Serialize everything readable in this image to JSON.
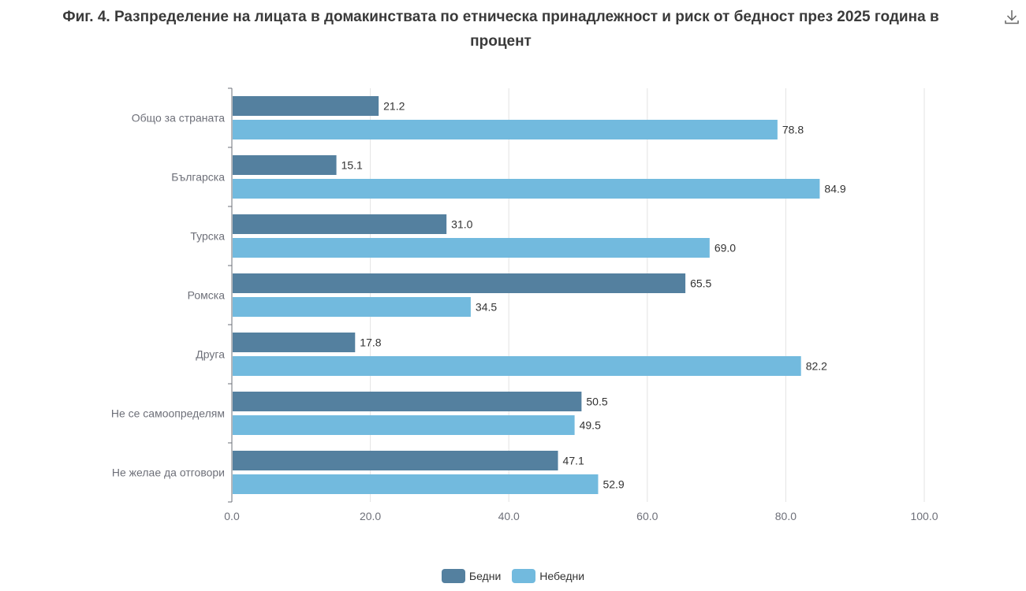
{
  "title": "Фиг. 4. Разпределение на лицата в домакинствата по етническа принадлежност и риск от бедност през 2025 година в процент",
  "colors": {
    "poor": "#54809f",
    "not_poor": "#72bade",
    "grid": "#e3e3e3",
    "axis": "#6e7079",
    "label": "#333333",
    "tick": "#6e7079"
  },
  "chart_data": {
    "type": "bar",
    "orientation": "horizontal",
    "categories": [
      "Общо за страната",
      "Българска",
      "Турска",
      "Ромска",
      "Друга",
      "Не се самоопределям",
      "Не желае да отговори"
    ],
    "series": [
      {
        "name": "Бедни",
        "values": [
          21.2,
          15.1,
          31.0,
          65.5,
          17.8,
          50.5,
          47.1
        ],
        "labels": [
          "21.2",
          "15.1",
          "31.0",
          "65.5",
          "17.8",
          "50.5",
          "47.1"
        ]
      },
      {
        "name": "Небедни",
        "values": [
          78.8,
          84.9,
          69.0,
          34.5,
          82.2,
          49.5,
          52.9
        ],
        "labels": [
          "78.8",
          "84.9",
          "69.0",
          "34.5",
          "82.2",
          "49.5",
          "52.9"
        ]
      }
    ],
    "xlim": [
      0,
      100
    ],
    "xticks": [
      "0.0",
      "20.0",
      "40.0",
      "60.0",
      "80.0",
      "100.0"
    ],
    "grid": true,
    "legend_position": "bottom-center"
  }
}
